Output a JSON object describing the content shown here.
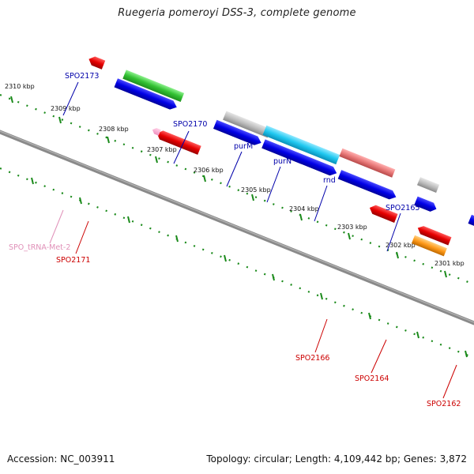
{
  "title": "Ruegeria pomeroyi DSS-3, complete genome",
  "footer": {
    "accession": "Accession: NC_003911",
    "summary": "Topology: circular; Length: 4,109,442 bp; Genes: 3,872"
  },
  "colors": {
    "backbone": "#808080",
    "tick": "#1a8a1a",
    "forward_cds": "#0000e6",
    "reverse_cds": "#e60000",
    "rna": "#f090c0",
    "label_blue": "#0000aa",
    "label_red": "#cc0000",
    "label_pink": "#e090b8"
  },
  "scale_labels": [
    "2310 kbp",
    "2309 kbp",
    "2308 kbp",
    "2307 kbp",
    "2306 kbp",
    "2305 kbp",
    "2304 kbp",
    "2303 kbp",
    "2302 kbp",
    "2301 kbp"
  ],
  "gene_labels": [
    {
      "name": "SPO2173",
      "side": "top"
    },
    {
      "name": "SPO2170",
      "side": "top"
    },
    {
      "name": "purM",
      "side": "top"
    },
    {
      "name": "purN",
      "side": "top"
    },
    {
      "name": "rnd",
      "side": "top"
    },
    {
      "name": "SPO2165",
      "side": "top"
    },
    {
      "name": "SPO_tRNA-Met-2",
      "side": "bottom"
    },
    {
      "name": "SPO2171",
      "side": "bottom"
    },
    {
      "name": "SPO2166",
      "side": "bottom"
    },
    {
      "name": "SPO2164",
      "side": "bottom"
    },
    {
      "name": "SPO2162",
      "side": "bottom"
    }
  ]
}
